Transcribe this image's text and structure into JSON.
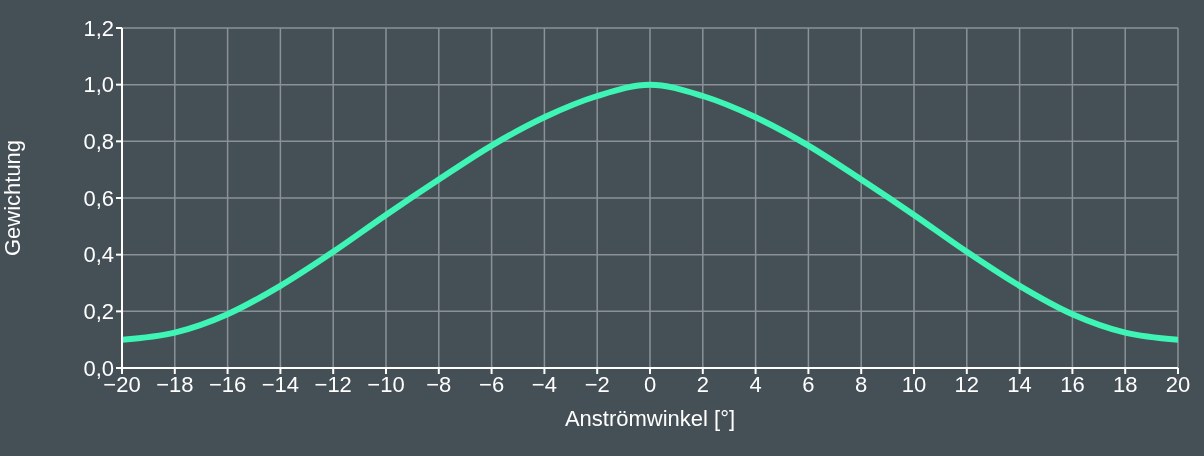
{
  "chart_data": {
    "type": "line",
    "xlabel": "Anströmwinkel [°]",
    "ylabel": "Gewichtung",
    "x": [
      -20,
      -18,
      -16,
      -14,
      -12,
      -10,
      -8,
      -6,
      -4,
      -2,
      0,
      2,
      4,
      6,
      8,
      10,
      12,
      14,
      16,
      18,
      20
    ],
    "series": [
      {
        "color": "#3ef5b5",
        "values": [
          0.1,
          0.125,
          0.19,
          0.29,
          0.41,
          0.54,
          0.665,
          0.785,
          0.885,
          0.96,
          1.0,
          0.96,
          0.885,
          0.785,
          0.665,
          0.54,
          0.41,
          0.29,
          0.19,
          0.125,
          0.1
        ]
      }
    ],
    "xlim": [
      -20,
      20
    ],
    "xticks": [
      {
        "value": -20,
        "label": "−20"
      },
      {
        "value": -18,
        "label": "−18"
      },
      {
        "value": -16,
        "label": "−16"
      },
      {
        "value": -14,
        "label": "−14"
      },
      {
        "value": -12,
        "label": "−12"
      },
      {
        "value": -10,
        "label": "−10"
      },
      {
        "value": -8,
        "label": "−8"
      },
      {
        "value": -6,
        "label": "−6"
      },
      {
        "value": -4,
        "label": "−4"
      },
      {
        "value": -2,
        "label": "−2"
      },
      0,
      2,
      4,
      6,
      8,
      10,
      12,
      14,
      16,
      18,
      20
    ],
    "ylim": [
      0,
      1.2
    ],
    "yticks": [
      {
        "value": 0,
        "label": "0,0"
      },
      {
        "value": 0.2,
        "label": "0,2"
      },
      {
        "value": 0.4,
        "label": "0,4"
      },
      {
        "value": 0.6,
        "label": "0,6"
      },
      {
        "value": 0.8,
        "label": "0,8"
      },
      {
        "value": 1.0,
        "label": "1,0"
      },
      {
        "value": 1.2,
        "label": "1,2"
      }
    ],
    "grid": true,
    "marker": "none",
    "line_style": "solid",
    "legend": false
  }
}
